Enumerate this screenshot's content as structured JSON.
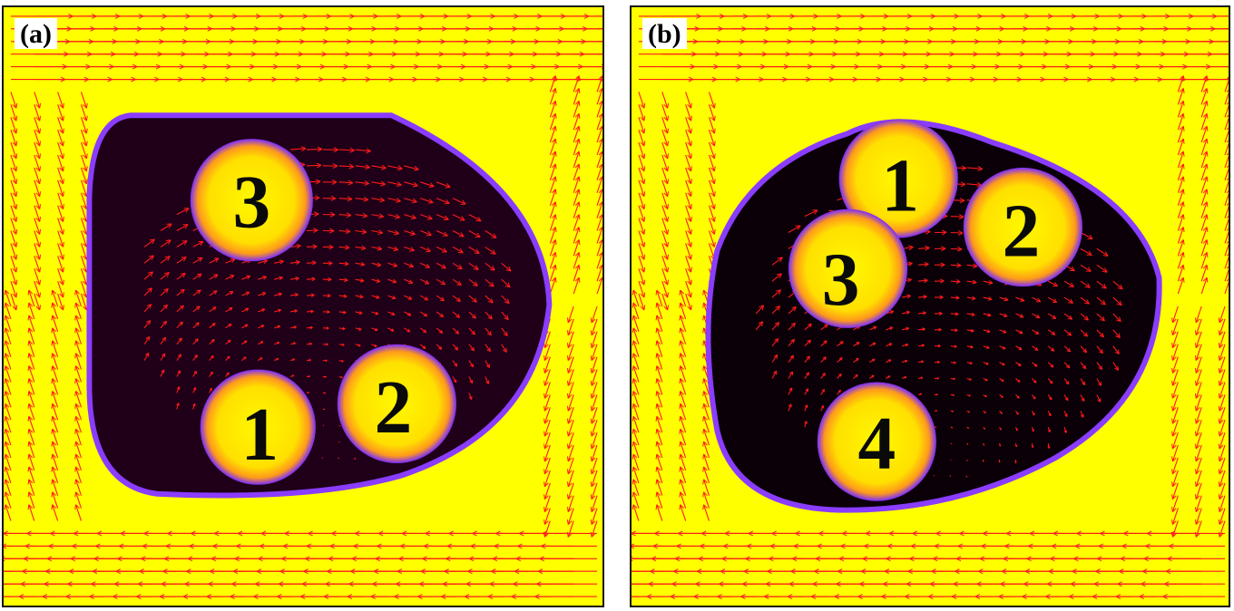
{
  "panels": [
    {
      "label": "(a)",
      "particles": [
        {
          "text": "3"
        },
        {
          "text": "1"
        },
        {
          "text": "2"
        }
      ]
    },
    {
      "label": "(b)",
      "particles": [
        {
          "text": "1"
        },
        {
          "text": "2"
        },
        {
          "text": "3"
        },
        {
          "text": "4"
        }
      ]
    }
  ],
  "colors": {
    "background": "#ffff00",
    "droplet": "#1a0015",
    "droplet_edge": "#7b2cff",
    "vectors": "#ff1a1a",
    "particle_core": "#ffe22a"
  }
}
